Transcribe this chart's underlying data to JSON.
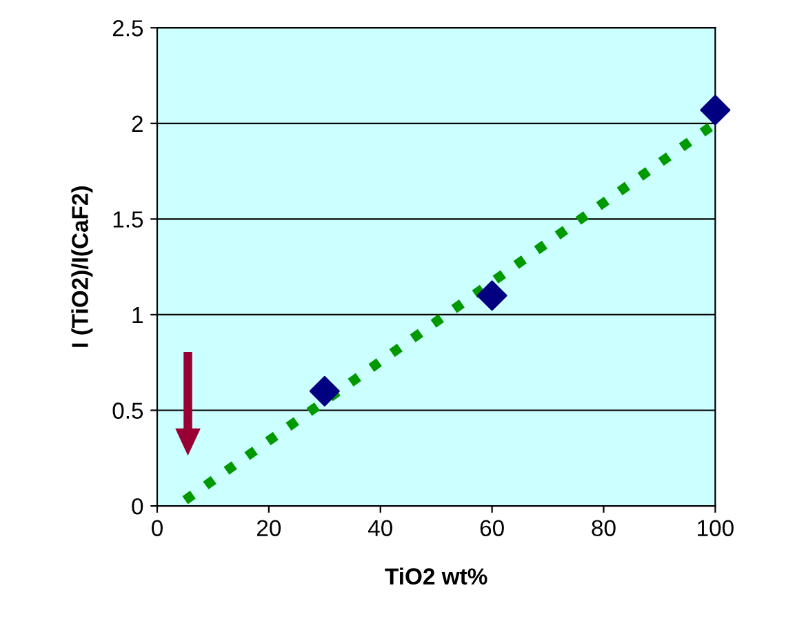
{
  "chart_data": {
    "type": "scatter",
    "xlabel": "TiO2 wt%",
    "ylabel": "I (TiO2)/I(CaF2)",
    "xlim": [
      0,
      100
    ],
    "xticks": [
      0,
      20,
      40,
      60,
      80,
      100
    ],
    "ylim": [
      0,
      2.5
    ],
    "yticks": [
      0,
      0.5,
      1,
      1.5,
      2,
      2.5
    ],
    "grid": "y",
    "marker": "diamond",
    "series": [
      {
        "color": "#000080",
        "x": [
          30,
          60,
          100
        ],
        "values": [
          0.6,
          1.1,
          2.07
        ]
      },
      {
        "type": "line",
        "color": "#009900",
        "line_style": "dotted",
        "marker": "none",
        "x": [
          5,
          100
        ],
        "values": [
          0.03,
          2.0
        ]
      }
    ]
  }
}
